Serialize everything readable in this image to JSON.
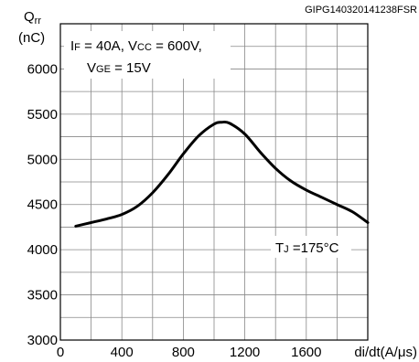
{
  "chart_data": {
    "type": "line",
    "title": "",
    "figure_code": "GIPG140320141238FSR",
    "xlabel": "di/dt(A/μs)",
    "ylabel": {
      "symbol": "Q",
      "subscript": "rr",
      "unit": "(nC)"
    },
    "xlim": [
      0,
      2000
    ],
    "ylim": [
      3000,
      6500
    ],
    "x_ticks": [
      0,
      400,
      800,
      1200,
      1600
    ],
    "y_ticks": [
      3000,
      3500,
      4000,
      4500,
      5000,
      5500,
      6000
    ],
    "grid": true,
    "conditions": {
      "line1": [
        {
          "text": "I",
          "sub": "F"
        },
        {
          "text": " = 40A, V",
          "sub": "CC"
        },
        {
          "text": " = 600V,",
          "sub": ""
        }
      ],
      "line2": [
        {
          "text": "V",
          "sub": "GE"
        },
        {
          "text": " = 15V",
          "sub": ""
        }
      ]
    },
    "annotation": [
      {
        "text": "T",
        "sub": "J"
      },
      {
        "text": " =175°C",
        "sub": ""
      }
    ],
    "series": [
      {
        "x": [
          100,
          200,
          300,
          400,
          500,
          600,
          700,
          800,
          900,
          1000,
          1050,
          1100,
          1200,
          1300,
          1400,
          1500,
          1600,
          1700,
          1800,
          1900,
          2000
        ],
        "values": [
          4260,
          4300,
          4340,
          4390,
          4480,
          4630,
          4830,
          5060,
          5260,
          5390,
          5410,
          5400,
          5280,
          5080,
          4900,
          4760,
          4660,
          4580,
          4500,
          4420,
          4300
        ]
      }
    ]
  }
}
